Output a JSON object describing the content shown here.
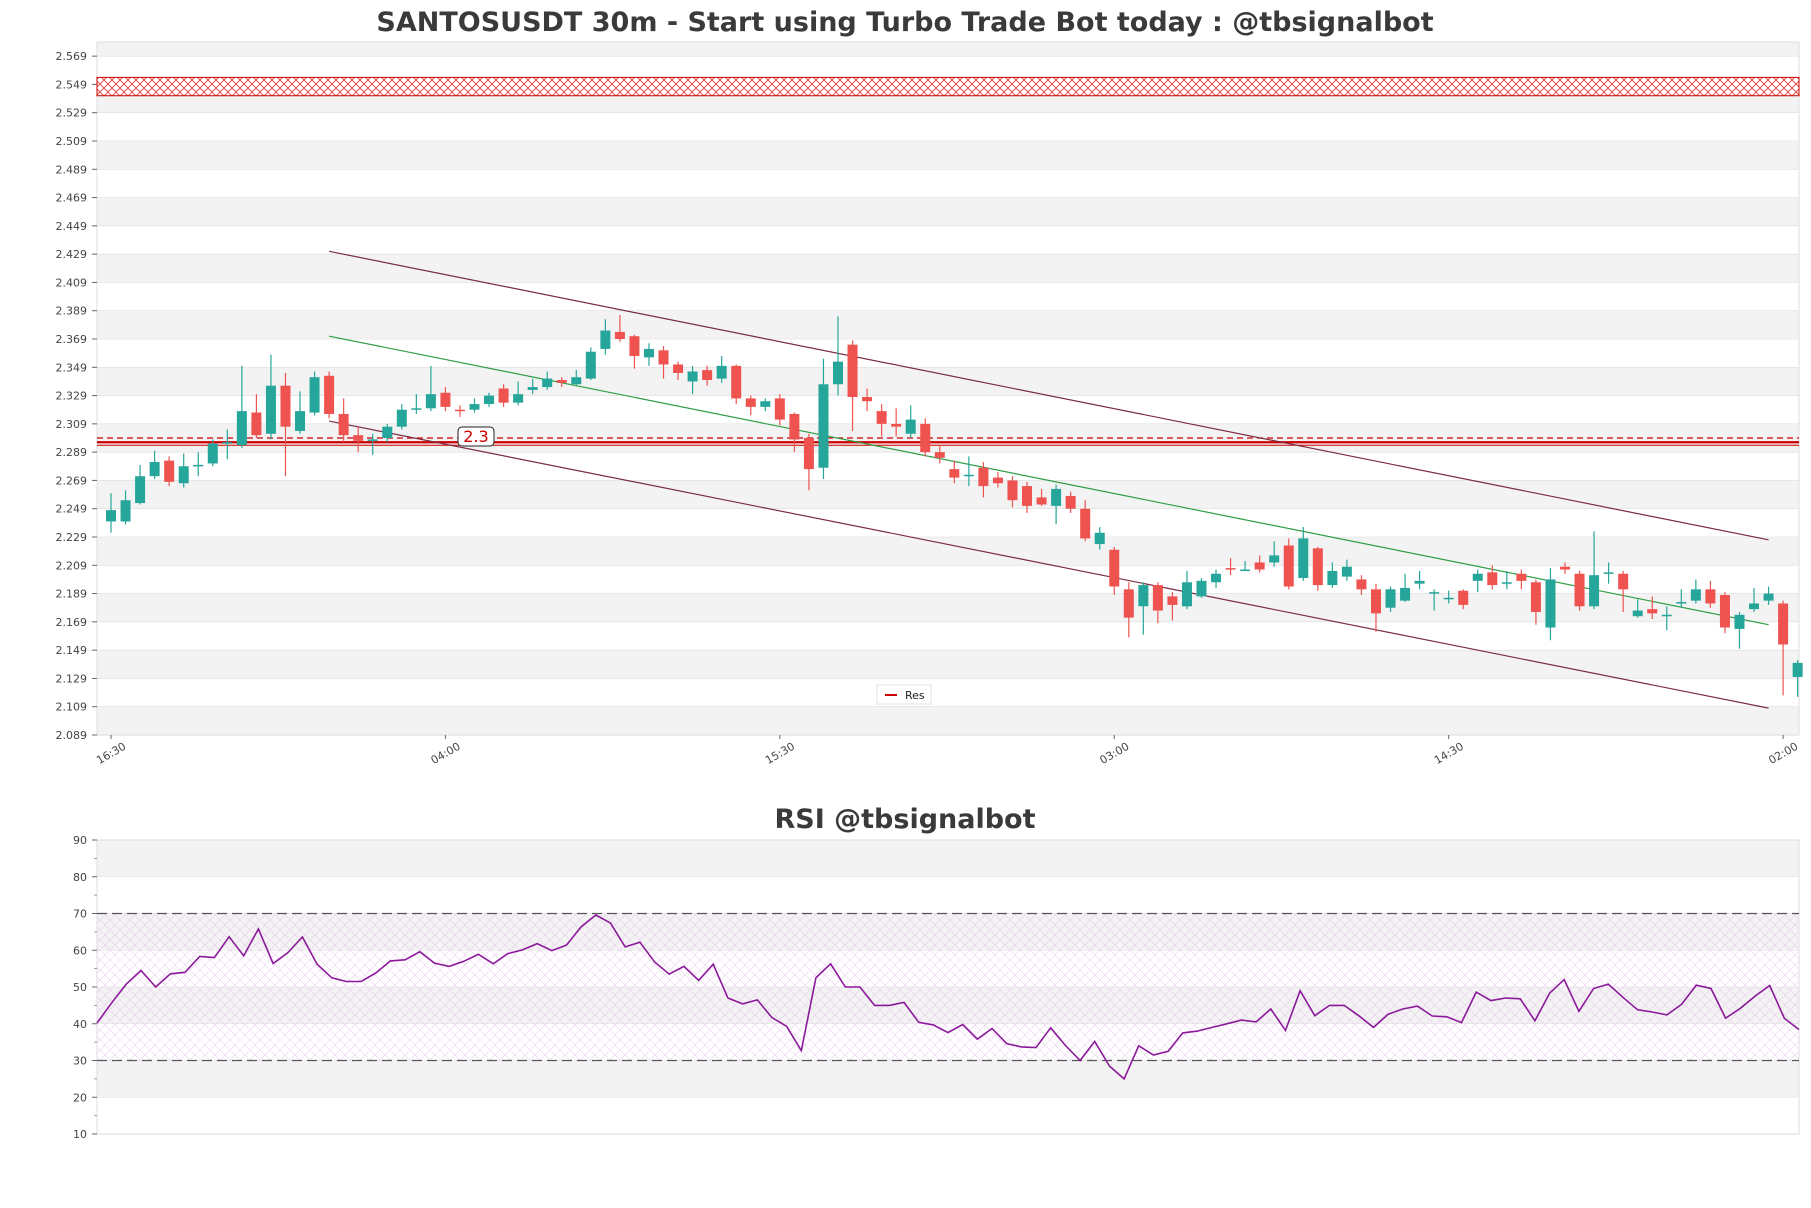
{
  "colors": {
    "up": "#26a69a",
    "down": "#ef5350",
    "resistance": "#cc0000",
    "channel_outer": "#7b2c45",
    "channel_mid": "#2e9e45",
    "rsi_line": "#8b1a9a",
    "band_fill": "#f3f3f3",
    "grid": "#dddddd"
  },
  "chart_data": [
    {
      "type": "candlestick",
      "title": "SANTOSUSDT 30m - Start using Turbo Trade Bot today : @tbsignalbot",
      "ylim": [
        2.089,
        2.579
      ],
      "y_ticks": [
        2.089,
        2.109,
        2.129,
        2.149,
        2.169,
        2.189,
        2.209,
        2.229,
        2.249,
        2.269,
        2.289,
        2.309,
        2.329,
        2.349,
        2.369,
        2.389,
        2.409,
        2.429,
        2.449,
        2.469,
        2.489,
        2.509,
        2.529,
        2.549,
        2.569
      ],
      "x_ticks": [
        {
          "index": 0,
          "label": "16:30"
        },
        {
          "index": 23,
          "label": "04:00"
        },
        {
          "index": 46,
          "label": "15:30"
        },
        {
          "index": 69,
          "label": "03:00"
        },
        {
          "index": 92,
          "label": "14:30"
        },
        {
          "index": 115,
          "label": "02:00"
        }
      ],
      "candles": [
        [
          2.24,
          2.248,
          2.232,
          2.26
        ],
        [
          2.24,
          2.255,
          2.238,
          2.262
        ],
        [
          2.253,
          2.272,
          2.252,
          2.28
        ],
        [
          2.272,
          2.282,
          2.27,
          2.29
        ],
        [
          2.283,
          2.268,
          2.265,
          2.286
        ],
        [
          2.267,
          2.279,
          2.264,
          2.288
        ],
        [
          2.279,
          2.28,
          2.272,
          2.289
        ],
        [
          2.281,
          2.295,
          2.279,
          2.298
        ],
        [
          2.295,
          2.296,
          2.284,
          2.305
        ],
        [
          2.294,
          2.318,
          2.292,
          2.35
        ],
        [
          2.317,
          2.301,
          2.299,
          2.33
        ],
        [
          2.302,
          2.336,
          2.298,
          2.358
        ],
        [
          2.336,
          2.307,
          2.272,
          2.345
        ],
        [
          2.304,
          2.318,
          2.302,
          2.332
        ],
        [
          2.317,
          2.342,
          2.315,
          2.346
        ],
        [
          2.343,
          2.316,
          2.313,
          2.346
        ],
        [
          2.316,
          2.301,
          2.296,
          2.327
        ],
        [
          2.301,
          2.297,
          2.289,
          2.307
        ],
        [
          2.297,
          2.298,
          2.287,
          2.302
        ],
        [
          2.299,
          2.307,
          2.296,
          2.309
        ],
        [
          2.307,
          2.319,
          2.305,
          2.323
        ],
        [
          2.319,
          2.32,
          2.316,
          2.33
        ],
        [
          2.32,
          2.33,
          2.318,
          2.35
        ],
        [
          2.331,
          2.321,
          2.318,
          2.335
        ],
        [
          2.319,
          2.318,
          2.314,
          2.322
        ],
        [
          2.319,
          2.323,
          2.317,
          2.327
        ],
        [
          2.323,
          2.329,
          2.321,
          2.331
        ],
        [
          2.334,
          2.324,
          2.321,
          2.337
        ],
        [
          2.324,
          2.33,
          2.322,
          2.339
        ],
        [
          2.333,
          2.335,
          2.33,
          2.341
        ],
        [
          2.335,
          2.341,
          2.333,
          2.346
        ],
        [
          2.34,
          2.338,
          2.335,
          2.342
        ],
        [
          2.337,
          2.342,
          2.336,
          2.347
        ],
        [
          2.341,
          2.36,
          2.34,
          2.363
        ],
        [
          2.362,
          2.375,
          2.358,
          2.383
        ],
        [
          2.374,
          2.369,
          2.367,
          2.386
        ],
        [
          2.371,
          2.357,
          2.348,
          2.372
        ],
        [
          2.356,
          2.362,
          2.35,
          2.366
        ],
        [
          2.361,
          2.351,
          2.341,
          2.364
        ],
        [
          2.351,
          2.345,
          2.34,
          2.353
        ],
        [
          2.339,
          2.346,
          2.33,
          2.35
        ],
        [
          2.347,
          2.34,
          2.336,
          2.35
        ],
        [
          2.341,
          2.35,
          2.338,
          2.357
        ],
        [
          2.35,
          2.327,
          2.323,
          2.351
        ],
        [
          2.327,
          2.321,
          2.315,
          2.329
        ],
        [
          2.321,
          2.325,
          2.318,
          2.327
        ],
        [
          2.327,
          2.312,
          2.308,
          2.33
        ],
        [
          2.316,
          2.298,
          2.289,
          2.317
        ],
        [
          2.299,
          2.277,
          2.262,
          2.302
        ],
        [
          2.278,
          2.337,
          2.27,
          2.355
        ],
        [
          2.337,
          2.353,
          2.329,
          2.385
        ],
        [
          2.365,
          2.328,
          2.304,
          2.368
        ],
        [
          2.328,
          2.325,
          2.318,
          2.334
        ],
        [
          2.318,
          2.309,
          2.3,
          2.323
        ],
        [
          2.309,
          2.307,
          2.3,
          2.32
        ],
        [
          2.302,
          2.312,
          2.299,
          2.322
        ],
        [
          2.309,
          2.289,
          2.286,
          2.313
        ],
        [
          2.289,
          2.285,
          2.281,
          2.294
        ],
        [
          2.277,
          2.271,
          2.267,
          2.283
        ],
        [
          2.272,
          2.273,
          2.265,
          2.286
        ],
        [
          2.278,
          2.265,
          2.257,
          2.282
        ],
        [
          2.271,
          2.267,
          2.264,
          2.275
        ],
        [
          2.269,
          2.255,
          2.25,
          2.272
        ],
        [
          2.265,
          2.251,
          2.246,
          2.268
        ],
        [
          2.257,
          2.252,
          2.251,
          2.263
        ],
        [
          2.251,
          2.263,
          2.238,
          2.266
        ],
        [
          2.258,
          2.249,
          2.246,
          2.261
        ],
        [
          2.249,
          2.228,
          2.226,
          2.255
        ],
        [
          2.224,
          2.232,
          2.22,
          2.236
        ],
        [
          2.22,
          2.194,
          2.188,
          2.222
        ],
        [
          2.192,
          2.172,
          2.158,
          2.197
        ],
        [
          2.18,
          2.195,
          2.16,
          2.197
        ],
        [
          2.195,
          2.177,
          2.168,
          2.197
        ],
        [
          2.187,
          2.181,
          2.17,
          2.19
        ],
        [
          2.18,
          2.197,
          2.178,
          2.205
        ],
        [
          2.187,
          2.198,
          2.186,
          2.2
        ],
        [
          2.197,
          2.203,
          2.193,
          2.206
        ],
        [
          2.207,
          2.206,
          2.202,
          2.214
        ],
        [
          2.206,
          2.206,
          2.205,
          2.212
        ],
        [
          2.211,
          2.206,
          2.204,
          2.216
        ],
        [
          2.211,
          2.216,
          2.208,
          2.226
        ],
        [
          2.223,
          2.194,
          2.192,
          2.228
        ],
        [
          2.2,
          2.228,
          2.198,
          2.236
        ],
        [
          2.221,
          2.195,
          2.191,
          2.222
        ],
        [
          2.195,
          2.205,
          2.193,
          2.211
        ],
        [
          2.201,
          2.208,
          2.198,
          2.213
        ],
        [
          2.199,
          2.192,
          2.188,
          2.202
        ],
        [
          2.192,
          2.175,
          2.162,
          2.196
        ],
        [
          2.179,
          2.192,
          2.176,
          2.194
        ],
        [
          2.184,
          2.193,
          2.183,
          2.203
        ],
        [
          2.196,
          2.198,
          2.192,
          2.205
        ],
        [
          2.19,
          2.19,
          2.177,
          2.192
        ],
        [
          2.186,
          2.186,
          2.182,
          2.191
        ],
        [
          2.191,
          2.181,
          2.178,
          2.192
        ],
        [
          2.198,
          2.203,
          2.19,
          2.206
        ],
        [
          2.204,
          2.195,
          2.192,
          2.209
        ],
        [
          2.196,
          2.197,
          2.192,
          2.205
        ],
        [
          2.203,
          2.198,
          2.192,
          2.206
        ],
        [
          2.197,
          2.176,
          2.167,
          2.199
        ],
        [
          2.165,
          2.199,
          2.156,
          2.207
        ],
        [
          2.208,
          2.206,
          2.203,
          2.211
        ],
        [
          2.203,
          2.18,
          2.177,
          2.205
        ],
        [
          2.18,
          2.202,
          2.178,
          2.233
        ],
        [
          2.204,
          2.204,
          2.196,
          2.211
        ],
        [
          2.203,
          2.192,
          2.176,
          2.205
        ],
        [
          2.173,
          2.177,
          2.172,
          2.185
        ],
        [
          2.178,
          2.175,
          2.171,
          2.187
        ],
        [
          2.173,
          2.174,
          2.163,
          2.18
        ],
        [
          2.183,
          2.183,
          2.179,
          2.192
        ],
        [
          2.184,
          2.192,
          2.182,
          2.199
        ],
        [
          2.192,
          2.182,
          2.179,
          2.198
        ],
        [
          2.188,
          2.165,
          2.161,
          2.19
        ],
        [
          2.164,
          2.174,
          2.15,
          2.176
        ],
        [
          2.178,
          2.182,
          2.176,
          2.193
        ],
        [
          2.184,
          2.189,
          2.181,
          2.194
        ],
        [
          2.182,
          2.153,
          2.117,
          2.184
        ],
        [
          2.13,
          2.14,
          2.116,
          2.142
        ]
      ],
      "resistance_zone": [
        2.541,
        2.554
      ],
      "resistance_line": {
        "value": 2.296,
        "upper": 2.299,
        "label": "2.3"
      },
      "channel_lines": [
        {
          "name": "upper",
          "start": [
            15,
            2.431
          ],
          "end": [
            114,
            2.227
          ]
        },
        {
          "name": "middle",
          "start": [
            15,
            2.371
          ],
          "end": [
            114,
            2.167
          ]
        },
        {
          "name": "lower",
          "start": [
            15,
            2.311
          ],
          "end": [
            114,
            2.108
          ]
        }
      ],
      "legend": [
        {
          "label": "Res",
          "position": "lower-center"
        }
      ]
    },
    {
      "type": "line",
      "title": "RSI @tbsignalbot",
      "ylim": [
        10,
        90
      ],
      "y_ticks": [
        10,
        20,
        30,
        40,
        50,
        60,
        70,
        80,
        90
      ],
      "overbought": 70,
      "oversold": 30,
      "series": [
        {
          "name": "RSI",
          "values": [
            40.2,
            45.7,
            50.8,
            54.5,
            50.0,
            53.6,
            54.0,
            58.3,
            58.0,
            63.7,
            58.5,
            65.8,
            56.4,
            59.3,
            63.6,
            56.2,
            52.5,
            51.5,
            51.5,
            53.8,
            57.1,
            57.4,
            59.6,
            56.5,
            55.6,
            57.0,
            58.9,
            56.3,
            59.1,
            60.1,
            61.8,
            59.9,
            61.4,
            66.4,
            69.6,
            67.4,
            60.9,
            62.2,
            56.8,
            53.5,
            55.6,
            51.8,
            56.2,
            47.0,
            45.4,
            46.5,
            41.7,
            39.3,
            32.7,
            52.5,
            56.3,
            50.0,
            50.0,
            45.0,
            45.0,
            45.8,
            40.4,
            39.7,
            37.6,
            39.8,
            35.8,
            38.7,
            34.6,
            33.7,
            33.5,
            38.9,
            34.1,
            30.0,
            35.2,
            28.5,
            25.0,
            34.0,
            31.5,
            32.5,
            37.5,
            38.0,
            39.0,
            40.0,
            41.0,
            40.5,
            44.0,
            38.2,
            49.0,
            42.2,
            45.0,
            45.0,
            42.2,
            39.0,
            42.6,
            44.0,
            44.8,
            42.1,
            41.9,
            40.3,
            48.6,
            46.3,
            47.0,
            46.8,
            40.8,
            48.3,
            52.0,
            43.4,
            49.6,
            50.8,
            47.2,
            43.8,
            43.2,
            42.4,
            45.3,
            50.5,
            49.6,
            41.5,
            44.2,
            47.5,
            50.4,
            41.5,
            38.4
          ]
        }
      ]
    }
  ]
}
